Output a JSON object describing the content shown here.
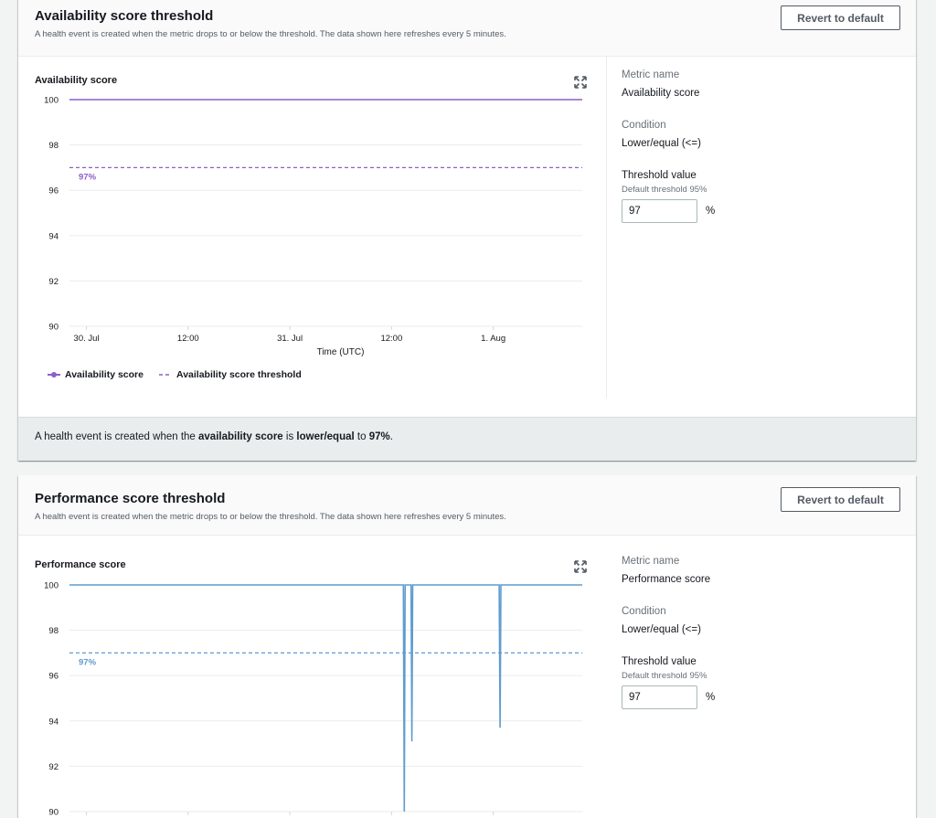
{
  "availability": {
    "title": "Availability score threshold",
    "description": "A health event is created when the metric drops to or below the threshold. The data shown here refreshes every 5 minutes.",
    "revert_label": "Revert to default",
    "chart_title": "Availability score",
    "side": {
      "metric_name_label": "Metric name",
      "metric_name_value": "Availability score",
      "condition_label": "Condition",
      "condition_value": "Lower/equal (<=)",
      "threshold_label": "Threshold value",
      "threshold_sub": "Default threshold 95%",
      "threshold_value": "97",
      "unit": "%"
    },
    "footer": {
      "prefix": "A health event is created when the ",
      "metric": "availability score",
      "mid": " is ",
      "condition": "lower/equal",
      "to": " to ",
      "value": "97%",
      "suffix": "."
    },
    "legend": {
      "series": "Availability score",
      "threshold": "Availability score threshold"
    }
  },
  "performance": {
    "title": "Performance score threshold",
    "description": "A health event is created when the metric drops to or below the threshold. The data shown here refreshes every 5 minutes.",
    "revert_label": "Revert to default",
    "chart_title": "Performance score",
    "side": {
      "metric_name_label": "Metric name",
      "metric_name_value": "Performance score",
      "condition_label": "Condition",
      "condition_value": "Lower/equal (<=)",
      "threshold_label": "Threshold value",
      "threshold_sub": "Default threshold 95%",
      "threshold_value": "97",
      "unit": "%"
    }
  },
  "colors": {
    "availability_line": "#8c5fc7",
    "performance_line": "#5f9ccf",
    "grid": "#eaeded",
    "axis_text": "#16191f"
  },
  "icons": [
    "expand-icon"
  ],
  "chart_data": [
    {
      "type": "line",
      "title": "Availability score",
      "xlabel": "Time (UTC)",
      "ylabel": "",
      "ylim": [
        90,
        100
      ],
      "yticks": [
        90,
        92,
        94,
        96,
        98,
        100
      ],
      "x_ticks": [
        "30. Jul",
        "12:00",
        "31. Jul",
        "12:00",
        "1. Aug",
        "12:00"
      ],
      "x_tick_hours": [
        0,
        12,
        24,
        36,
        48,
        60
      ],
      "x_range_hours": [
        -2,
        58.5
      ],
      "series": [
        {
          "name": "Availability score",
          "x_hours": [
            -2,
            70
          ],
          "values": [
            100,
            100
          ]
        }
      ],
      "threshold": {
        "name": "Availability score threshold",
        "value": 97,
        "label": "97%"
      },
      "grid": true,
      "legend": "bottom-left"
    },
    {
      "type": "line",
      "title": "Performance score",
      "xlabel": "",
      "ylabel": "",
      "ylim": [
        90,
        100
      ],
      "yticks": [
        90,
        92,
        94,
        96,
        98,
        100
      ],
      "x_range_hours": [
        -2,
        58.5
      ],
      "x_tick_hours": [
        0,
        12,
        24,
        36,
        48,
        60
      ],
      "series": [
        {
          "name": "",
          "x_hours": [
            -2,
            37.4,
            37.5,
            37.6,
            38.3,
            38.4,
            38.5,
            48.7,
            48.8,
            48.9,
            58.5
          ],
          "values": [
            100,
            100,
            90,
            100,
            100,
            93.1,
            100,
            100,
            93.7,
            100,
            100
          ]
        }
      ],
      "threshold": {
        "value": 97,
        "label": "97%"
      },
      "grid": true
    }
  ]
}
